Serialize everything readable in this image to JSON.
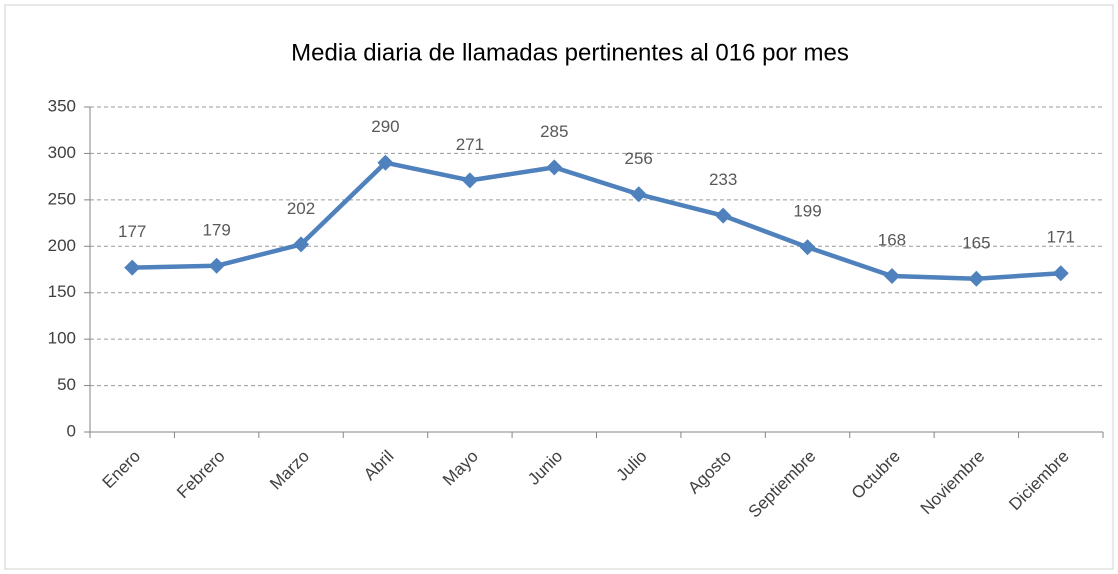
{
  "chart_data": {
    "type": "line",
    "title": "Media diaria de llamadas pertinentes al 016 por mes",
    "categories": [
      "Enero",
      "Febrero",
      "Marzo",
      "Abril",
      "Mayo",
      "Junio",
      "Julio",
      "Agosto",
      "Septiembre",
      "Octubre",
      "Noviembre",
      "Diciembre"
    ],
    "values": [
      177,
      179,
      202,
      290,
      271,
      285,
      256,
      233,
      199,
      168,
      165,
      171
    ],
    "color": "#4f81bd",
    "ylim": [
      0,
      350
    ],
    "yticks": [
      0,
      50,
      100,
      150,
      200,
      250,
      300,
      350
    ],
    "grid": true
  }
}
